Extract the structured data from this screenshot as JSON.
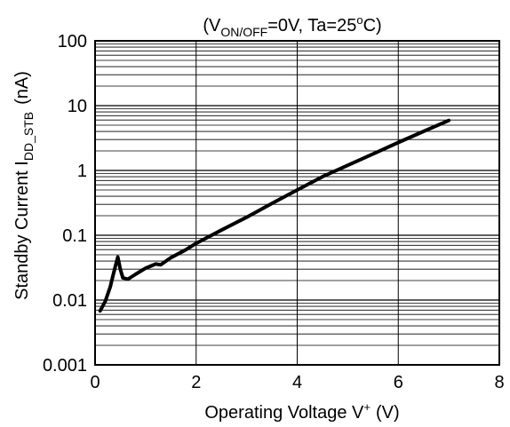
{
  "chart_data": {
    "type": "line",
    "title": "(V_ON/OFF=0V, Ta=25°C)",
    "title_parts": {
      "open": "(V",
      "sub": "ON/OFF",
      "rest_a": "=0V, Ta=25",
      "sup": "o",
      "rest_b": "C)"
    },
    "xlabel": "Operating Voltage V+ (V)",
    "xlabel_parts": {
      "main": "Operating Voltage V",
      "sup": "+",
      "unit": "(V)"
    },
    "ylabel": "Standby Current I_DD_STB (nA)",
    "ylabel_parts": {
      "main": "Standby Current I",
      "sub": "DD_STB",
      "unit": "(nA)"
    },
    "x_scale": "linear",
    "y_scale": "log",
    "xlim": [
      0,
      8
    ],
    "ylim": [
      0.001,
      100
    ],
    "x_ticks": [
      0,
      2,
      4,
      6,
      8
    ],
    "x_tick_labels": [
      "0",
      "2",
      "4",
      "6",
      "8"
    ],
    "y_ticks": [
      0.001,
      0.01,
      0.1,
      1,
      10,
      100
    ],
    "y_tick_labels": [
      "0.001",
      "0.01",
      "0.1",
      "1",
      "10",
      "100"
    ],
    "grid": true,
    "colors": {
      "line": "#000000",
      "grid": "#000000",
      "background": "#ffffff"
    },
    "series": [
      {
        "points": [
          [
            0.1,
            0.0068
          ],
          [
            0.2,
            0.0095
          ],
          [
            0.3,
            0.016
          ],
          [
            0.35,
            0.023
          ],
          [
            0.4,
            0.033
          ],
          [
            0.45,
            0.046
          ],
          [
            0.5,
            0.03
          ],
          [
            0.55,
            0.022
          ],
          [
            0.65,
            0.021
          ],
          [
            0.8,
            0.025
          ],
          [
            1.0,
            0.031
          ],
          [
            1.2,
            0.036
          ],
          [
            1.3,
            0.035
          ],
          [
            1.5,
            0.045
          ],
          [
            1.8,
            0.06
          ],
          [
            2.0,
            0.075
          ],
          [
            2.5,
            0.12
          ],
          [
            3.0,
            0.19
          ],
          [
            3.5,
            0.31
          ],
          [
            4.0,
            0.5
          ],
          [
            4.5,
            0.8
          ],
          [
            5.0,
            1.2
          ],
          [
            5.5,
            1.8
          ],
          [
            6.0,
            2.7
          ],
          [
            6.5,
            4.0
          ],
          [
            7.0,
            5.9
          ]
        ]
      }
    ]
  }
}
